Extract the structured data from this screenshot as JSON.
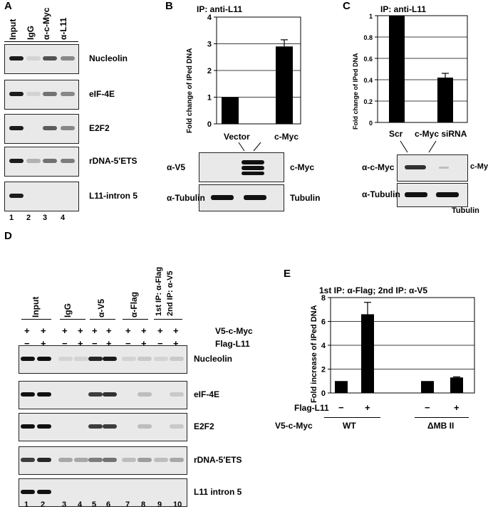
{
  "panelA": {
    "letter": "A",
    "lane_headers": [
      "Input",
      "IgG",
      "α-c-Myc",
      "α-L11"
    ],
    "rows": [
      "Nucleolin",
      "eIF-4E",
      "E2F2",
      "rDNA-5′ETS",
      "L11-intron 5"
    ],
    "lane_numbers": [
      "1",
      "2",
      "3",
      "4"
    ]
  },
  "panelB": {
    "letter": "B",
    "title": "IP: anti-L11",
    "ylabel": "Fold change of IPed DNA",
    "categories": [
      "Vector",
      "c-Myc"
    ],
    "blot_rows": [
      {
        "antibody": "α-V5",
        "target": "c-Myc"
      },
      {
        "antibody": "α-Tubulin",
        "target": "Tubulin"
      }
    ]
  },
  "panelC": {
    "letter": "C",
    "title": "IP: anti-L11",
    "ylabel": "Fold change of IPed DNA",
    "categories": [
      "Scr",
      "c-Myc siRNA"
    ],
    "blot_rows": [
      {
        "antibody": "α-c-Myc",
        "target": "c-Myc"
      },
      {
        "antibody": "α-Tubulin",
        "target": "Tubulin"
      }
    ]
  },
  "panelD": {
    "letter": "D",
    "group_headers": [
      "Input",
      "IgG",
      "α-V5",
      "α-Flag",
      "1st IP: α-Flag",
      "2nd IP: α-V5"
    ],
    "v5_row_label": "V5-c-Myc",
    "flag_row_label": "Flag-L11",
    "v5_signs": [
      "+",
      "+",
      "+",
      "+",
      "+",
      "+",
      "+",
      "+",
      "+",
      "+"
    ],
    "flag_signs": [
      "−",
      "+",
      "−",
      "+",
      "−",
      "+",
      "−",
      "+",
      "−",
      "+"
    ],
    "rows": [
      "Nucleolin",
      "eIF-4E",
      "E2F2",
      "rDNA-5′ETS",
      "L11 intron 5"
    ],
    "lane_numbers": [
      "1",
      "2",
      "3",
      "4",
      "5",
      "6",
      "7",
      "8",
      "9",
      "10"
    ]
  },
  "panelE": {
    "letter": "E",
    "title": "1st IP: α-Flag; 2nd IP: α-V5",
    "ylabel": "Fold increase of IPed DNA",
    "flag_label": "Flag-L11",
    "flag_signs": [
      "−",
      "+",
      "−",
      "+"
    ],
    "v5_label": "V5-c-Myc",
    "groups": [
      "WT",
      "ΔMB II"
    ]
  },
  "chart_data": [
    {
      "type": "bar",
      "title": "IP: anti-L11",
      "ylabel": "Fold change of IPed DNA",
      "categories": [
        "Vector",
        "c-Myc"
      ],
      "values": [
        1,
        2.9
      ],
      "errors": [
        0,
        0.25
      ],
      "ylim": [
        0,
        4
      ],
      "yticks": [
        0,
        1,
        2,
        3,
        4
      ],
      "grid": true
    },
    {
      "type": "bar",
      "title": "IP: anti-L11",
      "ylabel": "Fold change of IPed DNA",
      "categories": [
        "Scr",
        "c-Myc siRNA"
      ],
      "values": [
        1,
        0.42
      ],
      "errors": [
        0,
        0.04
      ],
      "ylim": [
        0,
        1
      ],
      "yticks": [
        0,
        0.2,
        0.4,
        0.6,
        0.8,
        1
      ],
      "ytick_labels": [
        "0",
        "0.2",
        "0.4",
        "0.6",
        "0.8",
        "1"
      ],
      "grid": true
    },
    {
      "type": "bar",
      "title": "1st IP: α-Flag; 2nd IP: α-V5",
      "ylabel": "Fold increase of IPed DNA",
      "categories": [
        "WT −",
        "WT +",
        "ΔMB II −",
        "ΔMB II +"
      ],
      "values": [
        1,
        6.6,
        1,
        1.3
      ],
      "errors": [
        0,
        1.0,
        0,
        0.05
      ],
      "ylim": [
        0,
        8
      ],
      "yticks": [
        0,
        2,
        4,
        6,
        8
      ],
      "grid": true
    }
  ]
}
